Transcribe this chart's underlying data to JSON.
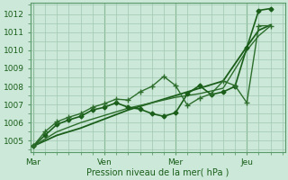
{
  "bg_color": "#cce8d8",
  "grid_color": "#a0c8b0",
  "line_color_dark": "#1a5e1a",
  "xlabel": "Pression niveau de la mer( hPa )",
  "xtick_labels": [
    "Mar",
    "Ven",
    "Mer",
    "Jeu"
  ],
  "xtick_positions": [
    0,
    3,
    6,
    9
  ],
  "ylim": [
    1004.4,
    1012.6
  ],
  "yticks": [
    1005,
    1006,
    1007,
    1008,
    1009,
    1010,
    1011,
    1012
  ],
  "xlim": [
    -0.1,
    10.6
  ],
  "series": [
    {
      "x": [
        0,
        1,
        2,
        3,
        4,
        5,
        6,
        7,
        8,
        9,
        9.5,
        10
      ],
      "y": [
        1004.7,
        1005.3,
        1005.7,
        1006.2,
        1006.7,
        1007.1,
        1007.5,
        1007.9,
        1008.3,
        1010.2,
        1011.1,
        1011.4
      ],
      "marker": null,
      "lw": 1.3,
      "color": "#1a5e1a"
    },
    {
      "x": [
        0,
        1,
        2,
        3,
        4,
        5,
        6,
        7,
        8,
        9,
        9.5,
        10
      ],
      "y": [
        1004.7,
        1005.5,
        1006.0,
        1006.4,
        1006.8,
        1007.1,
        1007.4,
        1007.6,
        1007.9,
        1010.0,
        1010.8,
        1011.35
      ],
      "marker": null,
      "lw": 1.0,
      "color": "#2d6e2d"
    },
    {
      "x": [
        0,
        0.5,
        1,
        1.5,
        2,
        2.5,
        3,
        3.5,
        4,
        4.5,
        5,
        5.5,
        6,
        6.5,
        7,
        7.5,
        8,
        8.5,
        9,
        9.5,
        10
      ],
      "y": [
        1004.7,
        1005.3,
        1005.9,
        1006.15,
        1006.35,
        1006.7,
        1006.85,
        1007.1,
        1006.85,
        1006.75,
        1006.5,
        1006.35,
        1006.55,
        1007.6,
        1008.05,
        1007.55,
        1007.7,
        1008.0,
        1010.15,
        1012.2,
        1012.3
      ],
      "marker": "D",
      "ms": 2.5,
      "lw": 1.2,
      "color": "#1a5e1a"
    },
    {
      "x": [
        0,
        0.5,
        1,
        1.5,
        2,
        2.5,
        3,
        3.5,
        4,
        4.5,
        5,
        5.5,
        6,
        6.5,
        7,
        7.5,
        8,
        8.5,
        9,
        9.5,
        10
      ],
      "y": [
        1004.7,
        1005.5,
        1006.05,
        1006.3,
        1006.5,
        1006.85,
        1007.05,
        1007.3,
        1007.25,
        1007.7,
        1008.0,
        1008.55,
        1008.05,
        1006.95,
        1007.35,
        1007.6,
        1008.3,
        1008.05,
        1007.1,
        1011.35,
        1011.35
      ],
      "marker": "+",
      "ms": 4,
      "lw": 1.0,
      "color": "#2d6e2d"
    }
  ],
  "vlines": [
    0,
    3,
    6,
    9
  ],
  "vline_color": "#5a9a6a",
  "figsize": [
    3.2,
    2.0
  ],
  "dpi": 100
}
